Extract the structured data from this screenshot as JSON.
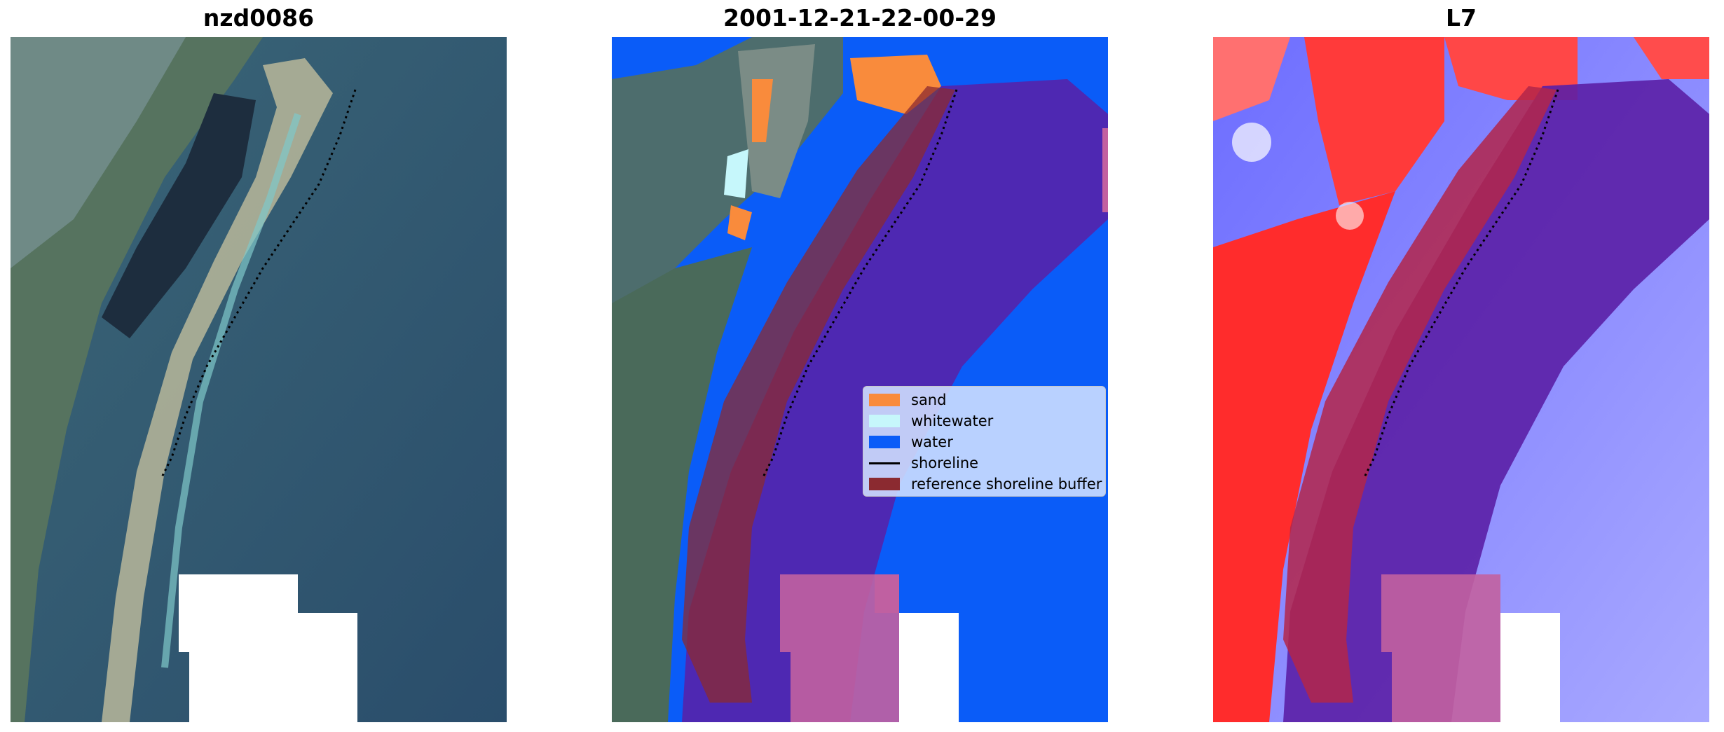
{
  "panels": [
    {
      "title": "nzd0086",
      "image": "satellite-rgb"
    },
    {
      "title": "2001-12-21-22-00-29",
      "image": "classified-map"
    },
    {
      "title": "L7",
      "image": "water-index"
    }
  ],
  "legend": {
    "items": [
      {
        "label": "sand",
        "color": "#f98b3c",
        "kind": "patch"
      },
      {
        "label": "whitewater",
        "color": "#c6f7fb",
        "kind": "patch"
      },
      {
        "label": "water",
        "color": "#0a5cf8",
        "kind": "patch"
      },
      {
        "label": "shoreline",
        "color": "#000000",
        "kind": "line"
      },
      {
        "label": "reference shoreline buffer",
        "color": "#8b2a30",
        "kind": "patch"
      }
    ]
  },
  "colors": {
    "buffer": "#8b2a30",
    "offshore_overlay": "#5b1fa6",
    "shoreline": "#000000"
  }
}
